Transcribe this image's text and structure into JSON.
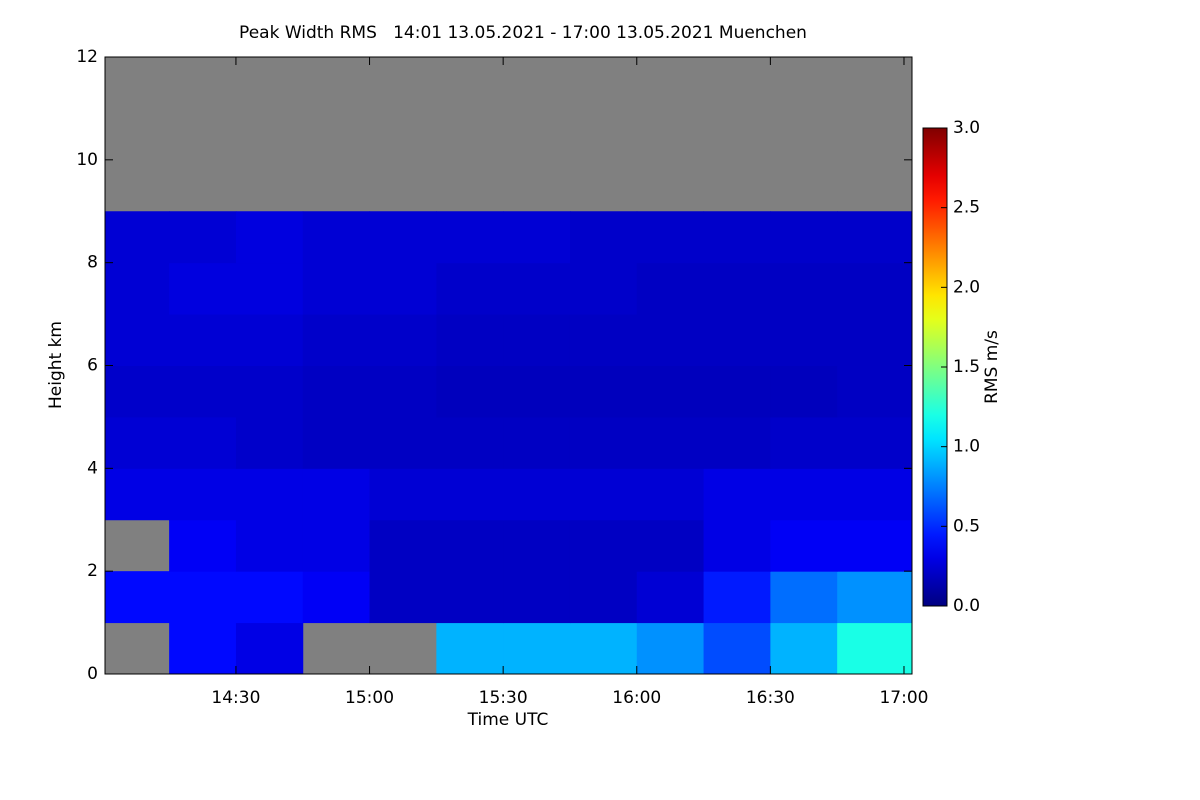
{
  "chart_data": {
    "type": "heatmap",
    "title": "Peak Width RMS   14:01 13.05.2021 - 17:00 13.05.2021 Muenchen",
    "x_label": "Time UTC",
    "y_label": "Height km",
    "colorbar_label": "RMS m/s",
    "xlim": [
      14.01,
      17.03
    ],
    "ylim": [
      0,
      12
    ],
    "xticks": [
      {
        "value": 14.5,
        "label": "14:30"
      },
      {
        "value": 15,
        "label": "15:00"
      },
      {
        "value": 15.5,
        "label": "15:30"
      },
      {
        "value": 16,
        "label": "16:00"
      },
      {
        "value": 16.5,
        "label": "16:30"
      },
      {
        "value": 17,
        "label": "17:00"
      }
    ],
    "yticks": [
      0,
      2,
      4,
      6,
      8,
      10,
      12
    ],
    "xbins": [
      14.0,
      14.25,
      14.5,
      14.75,
      15.0,
      15.25,
      15.5,
      15.75,
      16.0,
      16.25,
      16.5,
      16.75,
      17.03
    ],
    "ybins": [
      0,
      1,
      2,
      3,
      4,
      5,
      6,
      7,
      8,
      9,
      10,
      11,
      12
    ],
    "values": [
      [
        null,
        0.4,
        0.3,
        null,
        null,
        0.9,
        0.9,
        0.9,
        0.8,
        0.6,
        0.9,
        1.2
      ],
      [
        0.4,
        0.4,
        0.4,
        0.35,
        0.2,
        0.2,
        0.2,
        0.2,
        0.25,
        0.45,
        0.7,
        0.8
      ],
      [
        null,
        0.35,
        0.3,
        0.3,
        0.2,
        0.2,
        0.2,
        0.2,
        0.2,
        0.3,
        0.35,
        0.35
      ],
      [
        0.3,
        0.3,
        0.3,
        0.3,
        0.25,
        0.25,
        0.25,
        0.25,
        0.25,
        0.3,
        0.3,
        0.3
      ],
      [
        0.25,
        0.25,
        0.22,
        0.2,
        0.2,
        0.2,
        0.2,
        0.2,
        0.2,
        0.2,
        0.22,
        0.22
      ],
      [
        0.22,
        0.22,
        0.22,
        0.2,
        0.2,
        0.18,
        0.18,
        0.18,
        0.18,
        0.18,
        0.18,
        0.2
      ],
      [
        0.25,
        0.25,
        0.25,
        0.22,
        0.22,
        0.2,
        0.2,
        0.2,
        0.2,
        0.2,
        0.2,
        0.2
      ],
      [
        0.25,
        0.28,
        0.28,
        0.25,
        0.25,
        0.22,
        0.22,
        0.22,
        0.2,
        0.2,
        0.2,
        0.2
      ],
      [
        0.25,
        0.25,
        0.28,
        0.25,
        0.25,
        0.25,
        0.25,
        0.22,
        0.22,
        0.22,
        0.22,
        0.22
      ],
      [
        null,
        null,
        null,
        null,
        null,
        null,
        null,
        null,
        null,
        null,
        null,
        null
      ],
      [
        null,
        null,
        null,
        null,
        null,
        null,
        null,
        null,
        null,
        null,
        null,
        null
      ],
      [
        null,
        null,
        null,
        null,
        null,
        null,
        null,
        null,
        null,
        null,
        null,
        null
      ]
    ],
    "colormap": "jet",
    "null_color": "#808080",
    "clim": [
      0,
      3
    ],
    "cticks": [
      {
        "value": 0,
        "label": "0.0"
      },
      {
        "value": 0.5,
        "label": "0.5"
      },
      {
        "value": 1,
        "label": "1.0"
      },
      {
        "value": 1.5,
        "label": "1.5"
      },
      {
        "value": 2,
        "label": "2.0"
      },
      {
        "value": 2.5,
        "label": "2.5"
      },
      {
        "value": 3,
        "label": "3.0"
      }
    ]
  }
}
